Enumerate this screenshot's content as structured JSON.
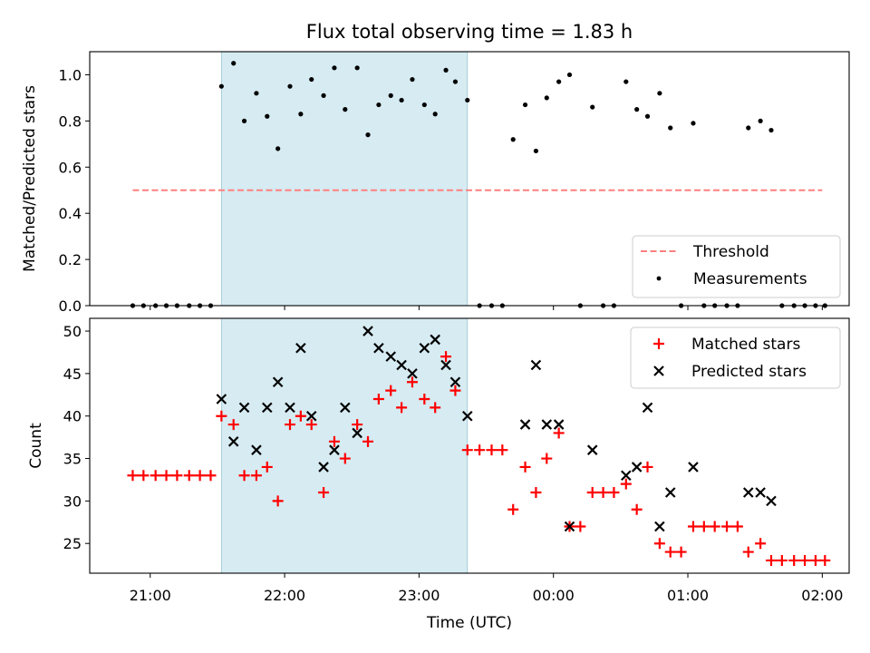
{
  "chart_data": [
    {
      "type": "scatter",
      "title": "Flux total observing time = 1.83 h",
      "ylabel": "Matched/Predicted stars",
      "xlabel": "",
      "xlim_hours": [
        20.55,
        26.2
      ],
      "ylim": [
        0,
        1.1
      ],
      "yticks": [
        0.0,
        0.2,
        0.4,
        0.6,
        0.8,
        1.0
      ],
      "ytick_labels": [
        "0.0",
        "0.2",
        "0.4",
        "0.6",
        "0.8",
        "1.0"
      ],
      "shaded_span_hours": [
        21.53,
        23.36
      ],
      "shade_color": "#add8e6",
      "legend_position": "lower-right",
      "threshold": {
        "name": "Threshold",
        "value": 0.5,
        "x_range_hours": [
          20.87,
          26.0
        ],
        "color": "#ff8080"
      },
      "measurements": {
        "name": "Measurements",
        "color": "#000000",
        "x_hours": [
          20.87,
          20.95,
          21.04,
          21.12,
          21.2,
          21.29,
          21.37,
          21.45,
          21.53,
          21.62,
          21.7,
          21.79,
          21.87,
          21.95,
          22.04,
          22.12,
          22.2,
          22.29,
          22.37,
          22.45,
          22.54,
          22.62,
          22.7,
          22.79,
          22.87,
          22.95,
          23.04,
          23.12,
          23.2,
          23.27,
          23.36,
          23.45,
          23.54,
          23.62,
          23.7,
          23.79,
          23.87,
          23.95,
          24.04,
          24.12,
          24.2,
          24.29,
          24.37,
          24.45,
          24.54,
          24.62,
          24.7,
          24.79,
          24.87,
          24.95,
          25.04,
          25.12,
          25.2,
          25.29,
          25.37,
          25.45,
          25.54,
          25.62,
          25.7,
          25.79,
          25.87,
          25.95,
          26.02
        ],
        "y": [
          0,
          0,
          0,
          0,
          0,
          0,
          0,
          0,
          0.95,
          1.05,
          0.8,
          0.92,
          0.82,
          0.68,
          0.95,
          0.83,
          0.98,
          0.91,
          1.03,
          0.85,
          1.03,
          0.74,
          0.87,
          0.91,
          0.89,
          0.98,
          0.87,
          0.83,
          1.02,
          0.97,
          0.89,
          0,
          0,
          0,
          0.72,
          0.87,
          0.67,
          0.9,
          0.97,
          1.0,
          0,
          0.86,
          0,
          0,
          0.97,
          0.85,
          0.82,
          0.92,
          0.77,
          0,
          0.79,
          0,
          0,
          0,
          0,
          0.77,
          0.8,
          0.76,
          0,
          0,
          0,
          0,
          0
        ]
      }
    },
    {
      "type": "scatter",
      "xlabel": "Time (UTC)",
      "ylabel": "Count",
      "xlim_hours": [
        20.55,
        26.2
      ],
      "ylim": [
        21.5,
        51.5
      ],
      "yticks": [
        25,
        30,
        35,
        40,
        45,
        50
      ],
      "ytick_labels": [
        "25",
        "30",
        "35",
        "40",
        "45",
        "50"
      ],
      "xticks_hours": [
        21,
        22,
        23,
        24,
        25,
        26
      ],
      "xtick_labels": [
        "21:00",
        "22:00",
        "23:00",
        "00:00",
        "01:00",
        "02:00"
      ],
      "shaded_span_hours": [
        21.53,
        23.36
      ],
      "legend_position": "upper-right",
      "matched": {
        "name": "Matched stars",
        "color": "#ff0000",
        "x_hours": [
          20.87,
          20.95,
          21.04,
          21.12,
          21.2,
          21.29,
          21.37,
          21.45,
          21.53,
          21.62,
          21.7,
          21.79,
          21.87,
          21.95,
          22.04,
          22.12,
          22.2,
          22.29,
          22.37,
          22.45,
          22.54,
          22.62,
          22.7,
          22.79,
          22.87,
          22.95,
          23.04,
          23.12,
          23.2,
          23.27,
          23.36,
          23.45,
          23.54,
          23.62,
          23.7,
          23.79,
          23.87,
          23.95,
          24.04,
          24.12,
          24.2,
          24.29,
          24.37,
          24.45,
          24.54,
          24.62,
          24.7,
          24.79,
          24.87,
          24.95,
          25.04,
          25.12,
          25.2,
          25.29,
          25.37,
          25.45,
          25.54,
          25.62,
          25.7,
          25.79,
          25.87,
          25.95,
          26.02
        ],
        "y": [
          33,
          33,
          33,
          33,
          33,
          33,
          33,
          33,
          40,
          39,
          33,
          33,
          34,
          30,
          39,
          40,
          39,
          31,
          37,
          35,
          39,
          37,
          42,
          43,
          41,
          44,
          42,
          41,
          47,
          43,
          36,
          36,
          36,
          36,
          29,
          34,
          31,
          35,
          38,
          27,
          27,
          31,
          31,
          31,
          32,
          29,
          34,
          25,
          24,
          24,
          27,
          27,
          27,
          27,
          27,
          24,
          25,
          23,
          23,
          23,
          23,
          23,
          23
        ]
      },
      "predicted": {
        "name": "Predicted stars",
        "color": "#000000",
        "x_hours": [
          21.53,
          21.62,
          21.7,
          21.79,
          21.87,
          21.95,
          22.04,
          22.12,
          22.2,
          22.29,
          22.37,
          22.45,
          22.54,
          22.62,
          22.7,
          22.79,
          22.87,
          22.95,
          23.04,
          23.12,
          23.2,
          23.27,
          23.36,
          23.79,
          23.87,
          23.95,
          24.04,
          24.12,
          24.29,
          24.54,
          24.62,
          24.7,
          24.79,
          24.87,
          25.04,
          25.45,
          25.54,
          25.62
        ],
        "y": [
          42,
          37,
          41,
          36,
          41,
          44,
          41,
          48,
          40,
          34,
          36,
          41,
          38,
          50,
          48,
          47,
          46,
          45,
          48,
          49,
          46,
          44,
          40,
          39,
          46,
          39,
          39,
          27,
          36,
          33,
          34,
          41,
          27,
          31,
          34,
          31,
          31,
          30
        ]
      }
    }
  ]
}
